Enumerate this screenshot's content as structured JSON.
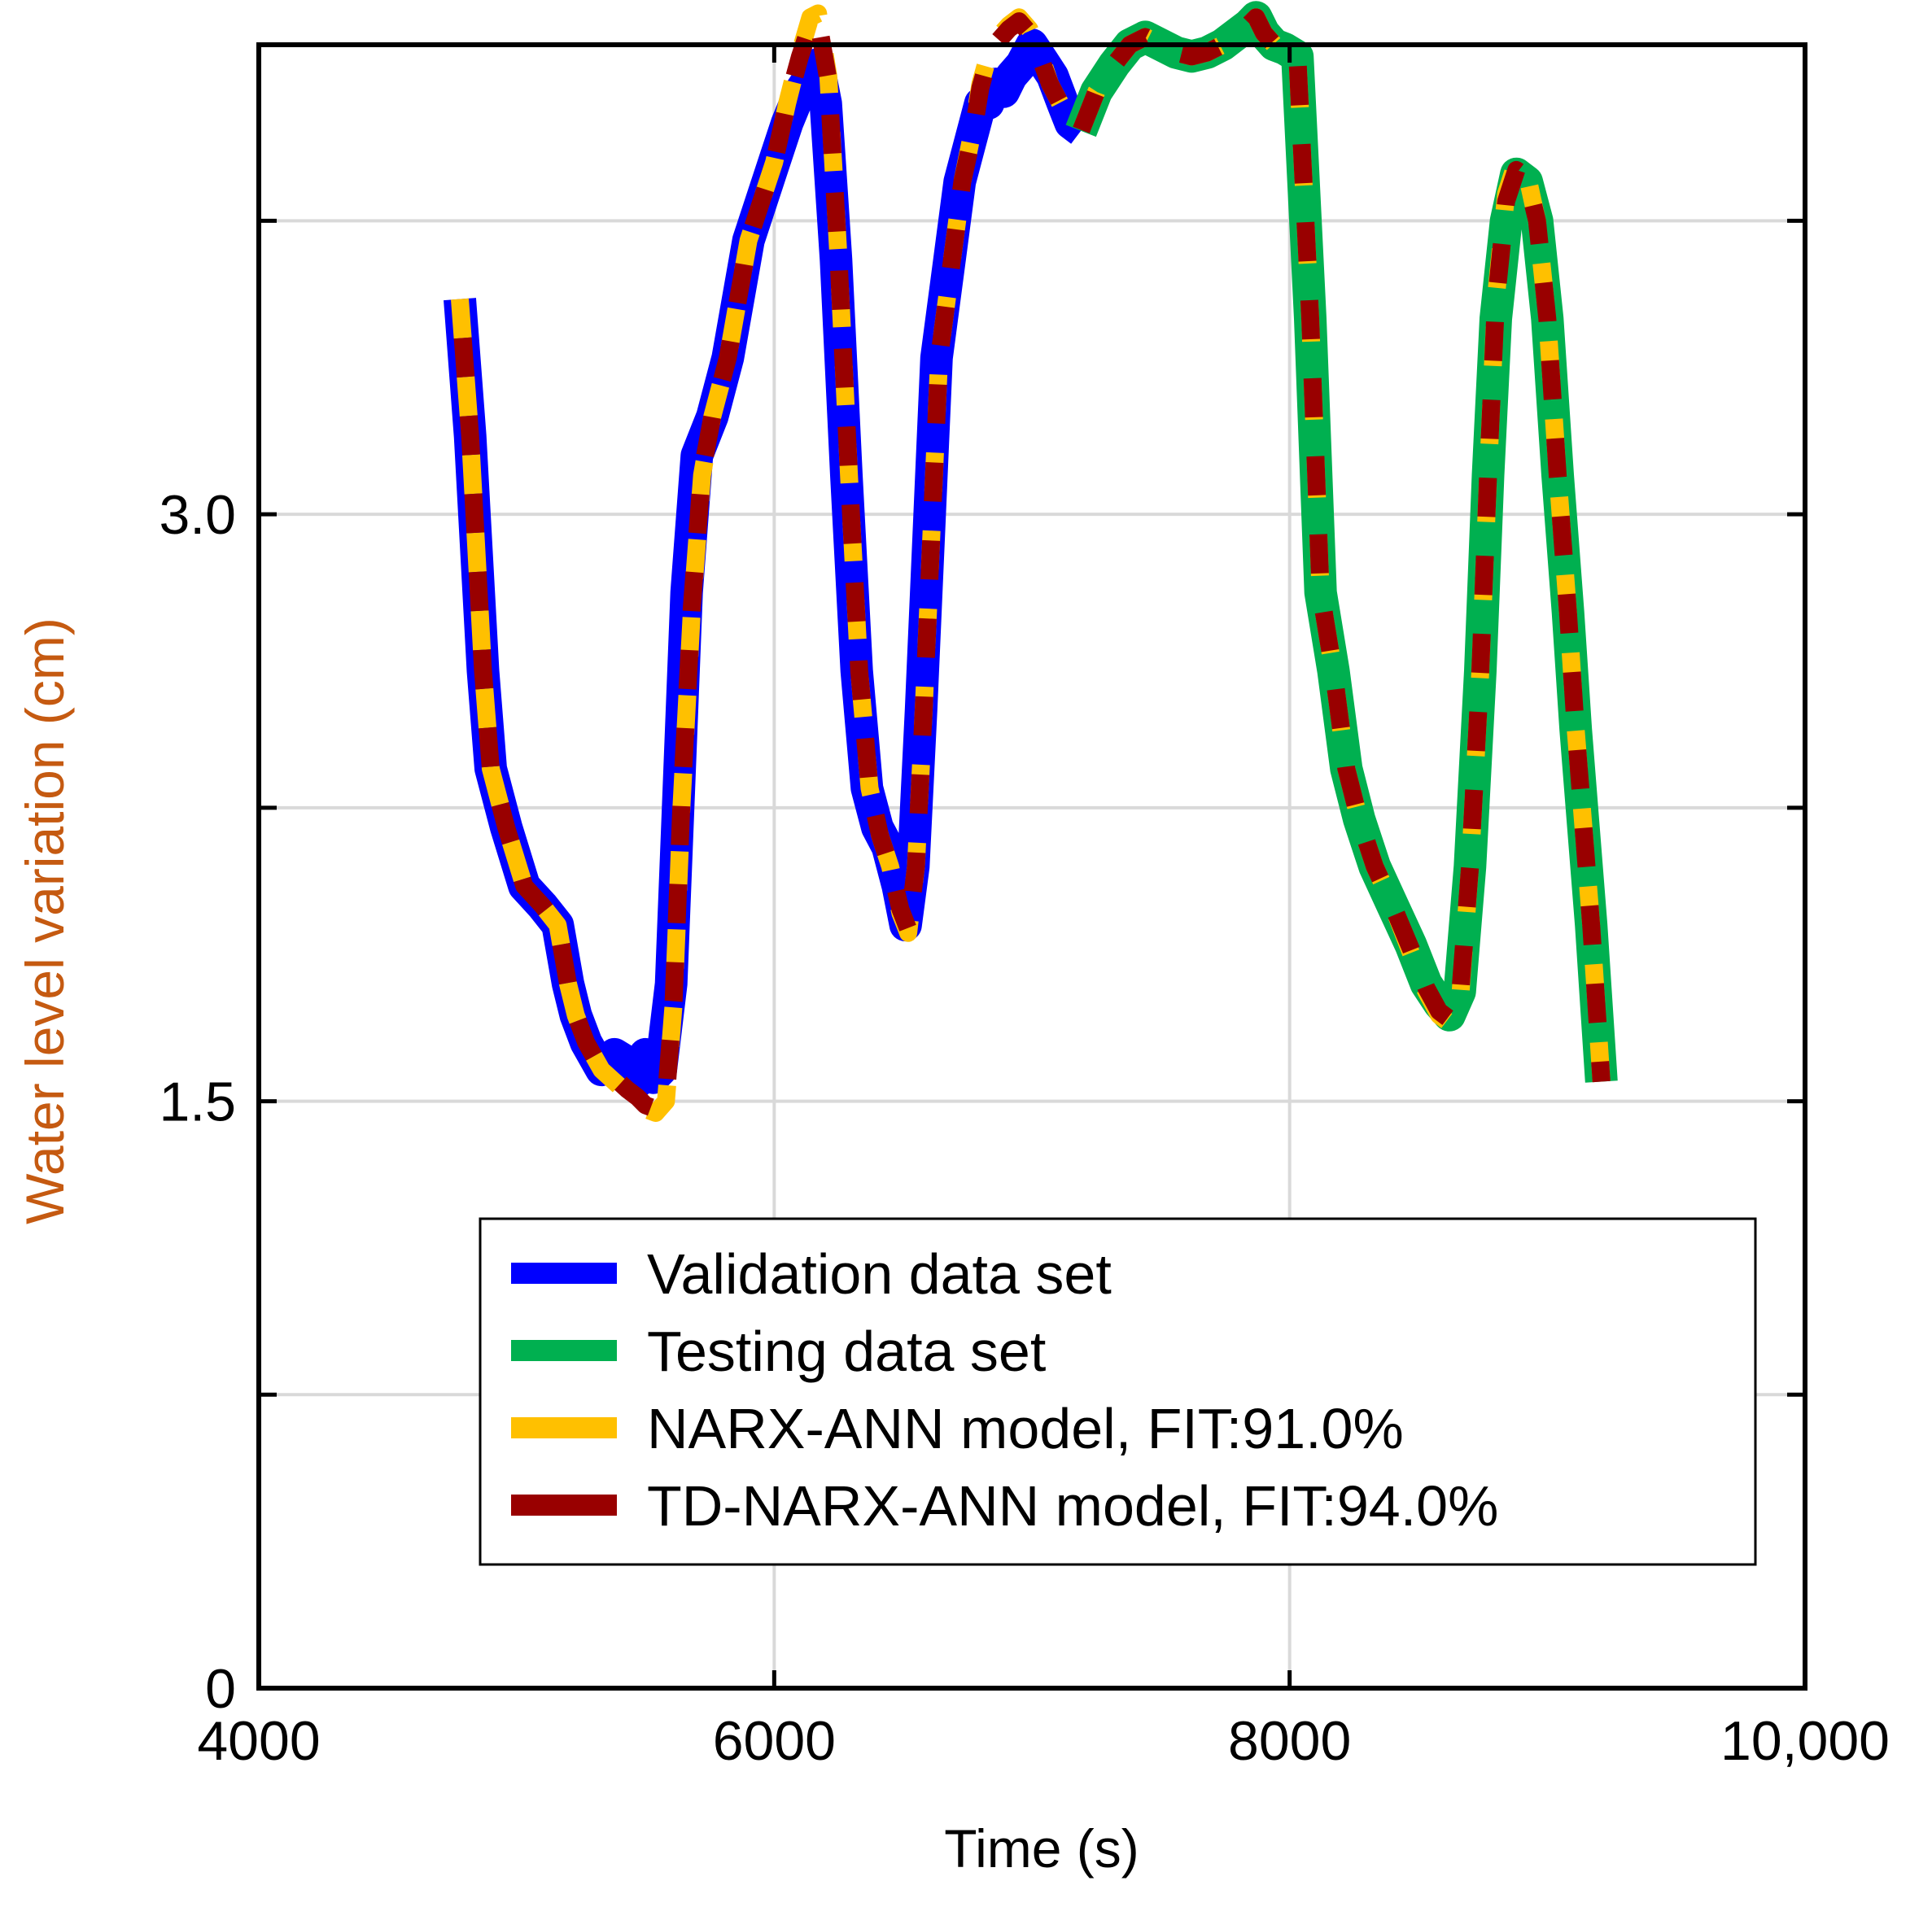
{
  "chart_data": {
    "type": "line",
    "title": "",
    "xlabel": "Time (s)",
    "ylabel": "Water level variation (cm)",
    "xlim": [
      4000,
      10000
    ],
    "ylim": [
      0,
      4.2
    ],
    "x_ticks": [
      4000,
      6000,
      8000,
      10000
    ],
    "x_tick_labels": [
      "4000",
      "6000",
      "8000",
      "10,000"
    ],
    "y_ticks": [
      0,
      0.75,
      1.5,
      2.25,
      3.0,
      3.75
    ],
    "y_tick_labels": [
      "0",
      "",
      "1.5",
      "",
      "3.0",
      ""
    ],
    "grid": true,
    "legend_position": "bottom-right",
    "series": [
      {
        "name": "Validation data set",
        "color": "#0000ff",
        "x": [
          4780,
          4820,
          4870,
          4900,
          4960,
          5030,
          5100,
          5160,
          5200,
          5230,
          5270,
          5330,
          5380,
          5430,
          5470,
          5500,
          5530,
          5560,
          5600,
          5630,
          5660,
          5700,
          5760,
          5820,
          5860,
          5900,
          5950,
          6000,
          6050,
          6100,
          6140,
          6170,
          6200,
          6240,
          6280,
          6320,
          6360,
          6400,
          6440,
          6480,
          6510,
          6540,
          6570,
          6600,
          6630,
          6680,
          6720,
          6760,
          6800,
          6830,
          6860,
          6890,
          6920,
          6960,
          7000,
          7040,
          7080,
          7120,
          7150,
          7190
        ],
        "y": [
          3.55,
          3.2,
          2.6,
          2.35,
          2.2,
          2.05,
          2.0,
          1.95,
          1.8,
          1.72,
          1.65,
          1.58,
          1.62,
          1.6,
          1.55,
          1.62,
          1.56,
          1.58,
          1.8,
          2.3,
          2.8,
          3.15,
          3.25,
          3.4,
          3.55,
          3.7,
          3.8,
          3.9,
          4.0,
          4.08,
          4.12,
          4.15,
          4.05,
          3.65,
          3.1,
          2.6,
          2.3,
          2.2,
          2.15,
          2.05,
          1.95,
          2.1,
          2.5,
          2.95,
          3.4,
          3.65,
          3.85,
          3.95,
          4.05,
          4.05,
          4.1,
          4.08,
          4.12,
          4.15,
          4.2,
          4.16,
          4.12,
          4.05,
          4.0,
          3.98
        ]
      },
      {
        "name": "Testing data set",
        "color": "#00b050",
        "x": [
          7190,
          7250,
          7320,
          7380,
          7440,
          7500,
          7560,
          7620,
          7680,
          7740,
          7800,
          7840,
          7870,
          7900,
          7940,
          7980,
          8030,
          8080,
          8120,
          8170,
          8220,
          8270,
          8330,
          8400,
          8470,
          8530,
          8580,
          8620,
          8660,
          8700,
          8740,
          8770,
          8800,
          8840,
          8880,
          8920,
          8960,
          9000,
          9040,
          9080,
          9110,
          9140,
          9170,
          9210
        ],
        "y": [
          3.98,
          4.08,
          4.15,
          4.2,
          4.22,
          4.2,
          4.18,
          4.17,
          4.18,
          4.2,
          4.23,
          4.25,
          4.27,
          4.23,
          4.2,
          4.19,
          4.17,
          3.5,
          2.8,
          2.6,
          2.35,
          2.22,
          2.1,
          2.0,
          1.9,
          1.8,
          1.75,
          1.72,
          1.78,
          2.1,
          2.6,
          3.1,
          3.5,
          3.75,
          3.87,
          3.85,
          3.75,
          3.5,
          3.1,
          2.75,
          2.45,
          2.2,
          1.95,
          1.55
        ]
      },
      {
        "name": "NARX-ANN model, FIT:91.0%",
        "color": "#ffc000",
        "x": [
          4780,
          4820,
          4870,
          4900,
          4960,
          5030,
          5100,
          5160,
          5200,
          5230,
          5270,
          5330,
          5380,
          5430,
          5470,
          5500,
          5540,
          5580,
          5610,
          5640,
          5680,
          5720,
          5760,
          5820,
          5860,
          5900,
          5950,
          6000,
          6050,
          6100,
          6140,
          6170,
          6210,
          6250,
          6290,
          6330,
          6370,
          6410,
          6450,
          6490,
          6520,
          6550,
          6580,
          6610,
          6640,
          6690,
          6730,
          6770,
          6800,
          6830,
          6870,
          6910,
          6950,
          6990,
          7030,
          7070,
          7110,
          7150,
          7190,
          7250,
          7320,
          7380,
          7440,
          7500,
          7560,
          7620,
          7680,
          7740,
          7800,
          7840,
          7870,
          7900,
          7940,
          7980,
          8030,
          8080,
          8120,
          8170,
          8220,
          8270,
          8330,
          8400,
          8470,
          8530,
          8580,
          8620,
          8660,
          8700,
          8740,
          8770,
          8800,
          8840,
          8880,
          8920,
          8960,
          9000,
          9040,
          9080,
          9110,
          9140,
          9170,
          9210
        ],
        "y": [
          3.55,
          3.2,
          2.6,
          2.35,
          2.2,
          2.05,
          2.0,
          1.95,
          1.8,
          1.72,
          1.65,
          1.58,
          1.55,
          1.52,
          1.5,
          1.48,
          1.47,
          1.5,
          1.75,
          2.25,
          2.75,
          3.1,
          3.25,
          3.4,
          3.55,
          3.7,
          3.8,
          3.9,
          4.05,
          4.18,
          4.27,
          4.28,
          4.12,
          3.65,
          3.1,
          2.6,
          2.3,
          2.18,
          2.1,
          1.98,
          1.93,
          2.1,
          2.5,
          2.95,
          3.4,
          3.65,
          3.85,
          3.98,
          4.1,
          4.17,
          4.22,
          4.25,
          4.27,
          4.24,
          4.18,
          4.1,
          4.05,
          4.0,
          3.98,
          4.08,
          4.15,
          4.2,
          4.22,
          4.2,
          4.18,
          4.17,
          4.18,
          4.2,
          4.23,
          4.25,
          4.27,
          4.23,
          4.2,
          4.19,
          4.17,
          3.5,
          2.8,
          2.6,
          2.35,
          2.22,
          2.1,
          2.0,
          1.88,
          1.78,
          1.72,
          1.7,
          1.75,
          2.1,
          2.6,
          3.1,
          3.55,
          3.82,
          3.9,
          3.87,
          3.75,
          3.5,
          3.1,
          2.75,
          2.45,
          2.2,
          1.95,
          1.55
        ]
      },
      {
        "name": "TD-NARX-ANN model, FIT:94.0%",
        "color": "#990000",
        "x": [
          4780,
          4820,
          4870,
          4900,
          4960,
          5030,
          5100,
          5160,
          5200,
          5230,
          5270,
          5330,
          5380,
          5430,
          5470,
          5500,
          5540,
          5580,
          5610,
          5640,
          5680,
          5720,
          5760,
          5820,
          5860,
          5900,
          5950,
          6000,
          6050,
          6100,
          6140,
          6170,
          6210,
          6250,
          6290,
          6330,
          6370,
          6410,
          6450,
          6490,
          6520,
          6550,
          6580,
          6610,
          6640,
          6690,
          6730,
          6770,
          6800,
          6830,
          6870,
          6910,
          6950,
          6990,
          7030,
          7070,
          7110,
          7150,
          7190,
          7250,
          7320,
          7380,
          7440,
          7500,
          7560,
          7620,
          7680,
          7740,
          7800,
          7840,
          7870,
          7900,
          7940,
          7980,
          8030,
          8080,
          8120,
          8170,
          8220,
          8270,
          8330,
          8400,
          8470,
          8530,
          8580,
          8620,
          8660,
          8700,
          8740,
          8770,
          8800,
          8840,
          8880,
          8920,
          8960,
          9000,
          9040,
          9080,
          9110,
          9140,
          9170,
          9210
        ],
        "y": [
          3.55,
          3.2,
          2.6,
          2.35,
          2.2,
          2.05,
          2.0,
          1.95,
          1.8,
          1.72,
          1.65,
          1.58,
          1.56,
          1.53,
          1.51,
          1.49,
          1.48,
          1.51,
          1.76,
          2.26,
          2.76,
          3.11,
          3.25,
          3.4,
          3.55,
          3.7,
          3.8,
          3.9,
          4.05,
          4.17,
          4.25,
          4.26,
          4.11,
          3.65,
          3.1,
          2.6,
          2.3,
          2.18,
          2.1,
          1.99,
          1.94,
          2.1,
          2.5,
          2.95,
          3.4,
          3.65,
          3.85,
          3.97,
          4.09,
          4.16,
          4.21,
          4.24,
          4.26,
          4.23,
          4.17,
          4.1,
          4.05,
          4.0,
          3.98,
          4.08,
          4.15,
          4.2,
          4.22,
          4.2,
          4.18,
          4.17,
          4.18,
          4.2,
          4.23,
          4.25,
          4.27,
          4.23,
          4.2,
          4.19,
          4.17,
          3.5,
          2.8,
          2.6,
          2.35,
          2.22,
          2.1,
          2.0,
          1.89,
          1.79,
          1.73,
          1.71,
          1.76,
          2.1,
          2.6,
          3.1,
          3.54,
          3.8,
          3.88,
          3.86,
          3.75,
          3.5,
          3.1,
          2.75,
          2.45,
          2.2,
          1.95,
          1.55
        ]
      }
    ]
  }
}
